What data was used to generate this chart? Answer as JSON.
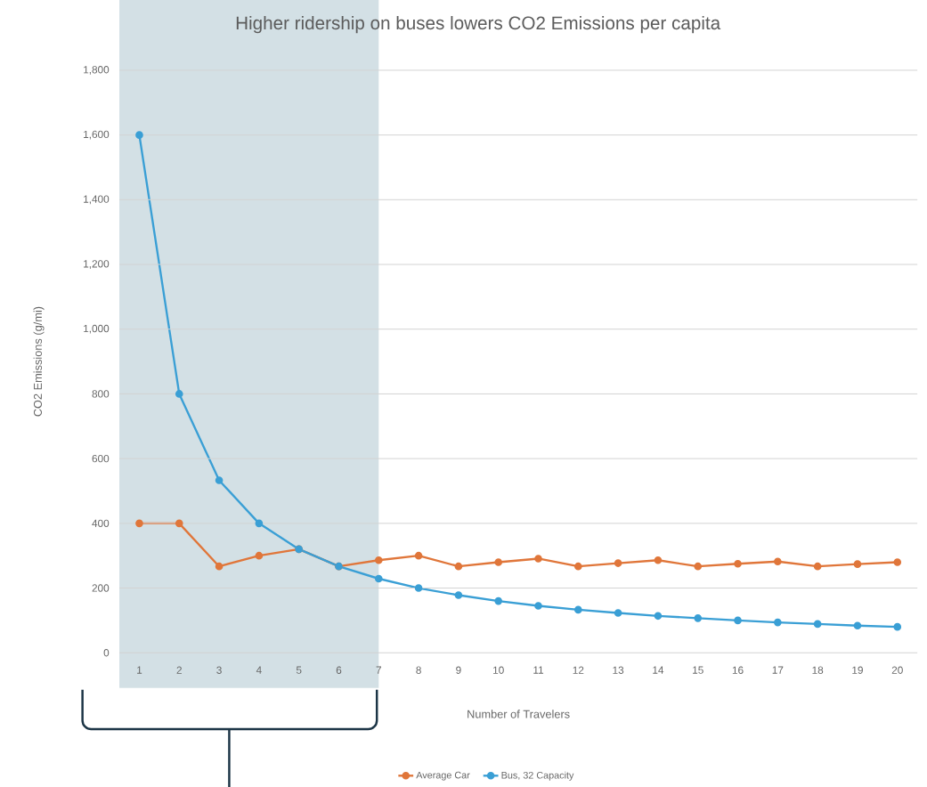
{
  "chart_data": {
    "type": "line",
    "title": "Higher ridership on buses lowers CO2 Emissions per capita",
    "xlabel": "Number of Travelers",
    "ylabel": "CO2 Emissions (g/mi)",
    "x": [
      1,
      2,
      3,
      4,
      5,
      6,
      7,
      8,
      9,
      10,
      11,
      12,
      13,
      14,
      15,
      16,
      17,
      18,
      19,
      20
    ],
    "series": [
      {
        "name": "Average Car",
        "color": "#e0763a",
        "values": [
          400,
          400,
          267,
          300,
          320,
          267,
          286,
          300,
          267,
          280,
          291,
          267,
          277,
          286,
          267,
          275,
          282,
          267,
          274,
          280
        ]
      },
      {
        "name": "Bus, 32 Capacity",
        "color": "#3a9fd5",
        "values": [
          1600,
          800,
          533,
          400,
          320,
          267,
          229,
          200,
          178,
          160,
          145,
          133,
          123,
          114,
          107,
          100,
          94,
          89,
          84,
          80
        ]
      }
    ],
    "xlim": [
      0.5,
      20.5
    ],
    "xticks": [
      1,
      2,
      3,
      4,
      5,
      6,
      7,
      8,
      9,
      10,
      11,
      12,
      13,
      14,
      15,
      16,
      17,
      18,
      19,
      20
    ],
    "ylim": [
      0,
      1800
    ],
    "yticks": [
      0,
      200,
      400,
      600,
      800,
      {
        "value": 1000,
        "label": "1,000"
      },
      {
        "value": 1200,
        "label": "1,200"
      },
      {
        "value": 1400,
        "label": "1,400"
      },
      {
        "value": 1600,
        "label": "1,600"
      },
      {
        "value": 1800,
        "label": "1,800"
      }
    ],
    "bands": [
      {
        "axis": "x",
        "from": 0.5,
        "to": 7,
        "color": "#d3e0e5"
      }
    ],
    "grid": "y",
    "legend": "bottom",
    "marker": "circle",
    "line_style": "solid"
  }
}
